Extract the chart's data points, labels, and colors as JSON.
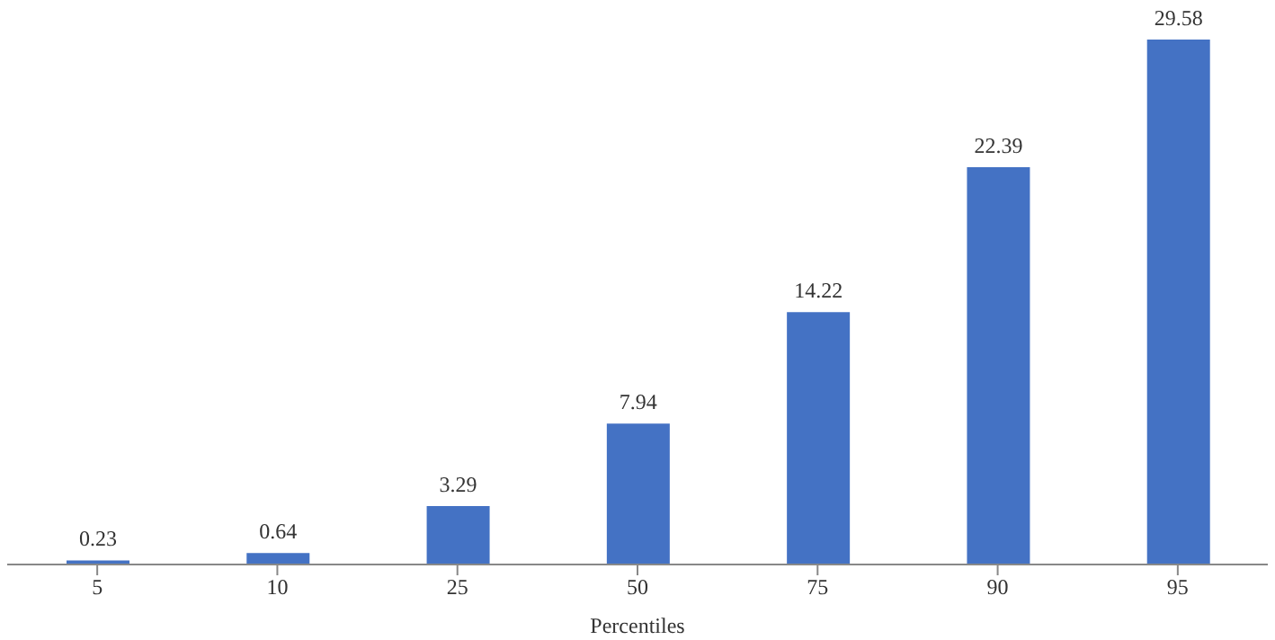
{
  "chart_data": {
    "type": "bar",
    "xlabel": "Percentiles",
    "categories": [
      "5",
      "10",
      "25",
      "50",
      "75",
      "90",
      "95"
    ],
    "values": [
      0.23,
      0.64,
      3.29,
      7.94,
      14.22,
      22.39,
      29.58
    ],
    "color": "#4472c4",
    "data_labels": true,
    "grid": false,
    "legend": false
  }
}
